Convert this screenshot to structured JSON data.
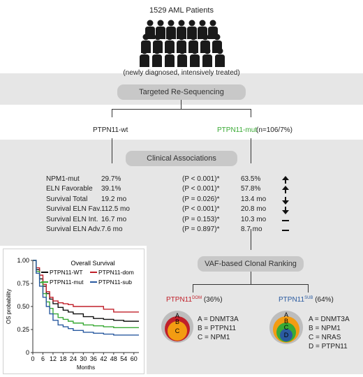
{
  "header": {
    "patients": "1529 AML Patients",
    "subtitle": "(newly diagnosed, intensively treated)"
  },
  "steps": {
    "resequencing": "Targeted Re-Sequencing",
    "associations": "Clinical Associations",
    "clonal": "VAF-based Clonal Ranking"
  },
  "groups": {
    "wt": "PTPN11-wt",
    "mut": "PTPN11-mut",
    "mut_n": "(n=106/7%)"
  },
  "associations": [
    {
      "label": "NPM1-mut",
      "wt": "29.7%",
      "p": "(P < 0.001)*",
      "mut": "63.5%",
      "trend": "up"
    },
    {
      "label": "ELN Favorable",
      "wt": "39.1%",
      "p": "(P < 0.001)*",
      "mut": "57.8%",
      "trend": "up"
    },
    {
      "label": "Survival Total",
      "wt": "19.2 mo",
      "p": "(P = 0.026)*",
      "mut": "13.4 mo",
      "trend": "down"
    },
    {
      "label": "Survival ELN Fav.",
      "wt": "112.5 mo",
      "p": "(P < 0.001)*",
      "mut": "20.8 mo",
      "trend": "down"
    },
    {
      "label": "Survival ELN Int.",
      "wt": "16.7 mo",
      "p": "(P = 0.153)*",
      "mut": "10.3 mo",
      "trend": "flat"
    },
    {
      "label": "Survival ELN Adv.",
      "wt": "7.6 mo",
      "p": "(P = 0.897)*",
      "mut": "8.7 mo",
      "trend": "flat"
    }
  ],
  "clonal": {
    "dom_prefix": "PTPN11",
    "dom_sup": "DOM",
    "dom_pct": "(36%)",
    "sub_prefix": "PTPN11",
    "sub_sup": "SUB",
    "sub_pct": "(64%)",
    "dom_legend": [
      "A = DNMT3A",
      "B = PTPN11",
      "C = NPM1"
    ],
    "sub_legend": [
      "A = DNMT3A",
      "B = NPM1",
      "C = NRAS",
      "D = PTPN11"
    ],
    "dom_letters": [
      "A",
      "B",
      "C"
    ],
    "sub_letters": [
      "A",
      "B",
      "C",
      "D"
    ]
  },
  "colors": {
    "mut_green": "#3aaa35",
    "dom_red": "#c0202a",
    "sub_blue": "#2a5aa0",
    "grey_band": "#e6e6e6",
    "pill": "#c8c8c8"
  },
  "chart_data": {
    "type": "line",
    "title": "Overall Survival",
    "xlabel": "Months",
    "ylabel": "OS probability",
    "xlim": [
      0,
      63
    ],
    "ylim": [
      0,
      1.0
    ],
    "xticks": [
      0,
      6,
      12,
      18,
      24,
      30,
      36,
      42,
      48,
      54,
      60
    ],
    "yticks": [
      0,
      0.25,
      0.5,
      0.75,
      1.0
    ],
    "ytick_labels": [
      "0",
      "0.25",
      "0.50",
      "0.75",
      "1.00"
    ],
    "legend": "top-right",
    "series": [
      {
        "name": "PTPN11-WT",
        "color": "#111111",
        "x": [
          0,
          2,
          4,
          6,
          8,
          10,
          12,
          15,
          18,
          21,
          24,
          30,
          36,
          42,
          48,
          54,
          60,
          63
        ],
        "y": [
          1.0,
          0.9,
          0.8,
          0.72,
          0.64,
          0.58,
          0.53,
          0.49,
          0.46,
          0.44,
          0.42,
          0.39,
          0.37,
          0.36,
          0.35,
          0.34,
          0.34,
          0.34
        ]
      },
      {
        "name": "PTPN11-dom",
        "color": "#c0202a",
        "x": [
          0,
          2,
          4,
          6,
          8,
          10,
          12,
          15,
          18,
          21,
          24,
          30,
          36,
          42,
          48,
          54,
          60,
          63
        ],
        "y": [
          1.0,
          0.92,
          0.84,
          0.74,
          0.66,
          0.6,
          0.56,
          0.54,
          0.53,
          0.52,
          0.5,
          0.5,
          0.5,
          0.47,
          0.44,
          0.44,
          0.44,
          0.44
        ]
      },
      {
        "name": "PTPN11-mut",
        "color": "#3aaa35",
        "x": [
          0,
          2,
          4,
          6,
          8,
          10,
          12,
          15,
          18,
          21,
          24,
          30,
          36,
          42,
          48,
          54,
          60,
          63
        ],
        "y": [
          1.0,
          0.88,
          0.76,
          0.64,
          0.55,
          0.48,
          0.42,
          0.38,
          0.36,
          0.34,
          0.32,
          0.3,
          0.29,
          0.28,
          0.27,
          0.27,
          0.27,
          0.27
        ]
      },
      {
        "name": "PTPN11-sub",
        "color": "#2a5aa0",
        "x": [
          0,
          2,
          4,
          6,
          8,
          10,
          12,
          15,
          18,
          21,
          24,
          30,
          36,
          42,
          48,
          54,
          60,
          63
        ],
        "y": [
          1.0,
          0.86,
          0.72,
          0.6,
          0.5,
          0.42,
          0.35,
          0.3,
          0.28,
          0.26,
          0.24,
          0.22,
          0.21,
          0.2,
          0.19,
          0.19,
          0.19,
          0.19
        ]
      }
    ]
  }
}
